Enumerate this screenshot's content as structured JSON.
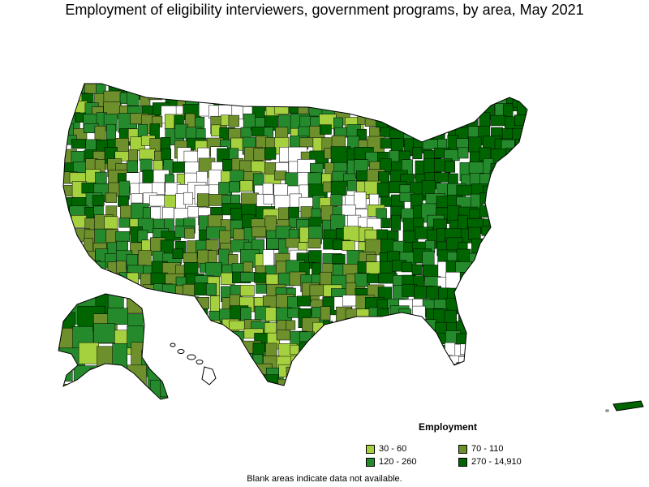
{
  "title": "Employment of eligibility interviewers, government programs, by area, May 2021",
  "legend": {
    "title": "Employment",
    "items": [
      {
        "label": "30 - 60",
        "color": "#a6d13f"
      },
      {
        "label": "70 - 110",
        "color": "#6d8f2c"
      },
      {
        "label": "120 - 260",
        "color": "#248a2b"
      },
      {
        "label": "270 - 14,910",
        "color": "#006400"
      }
    ]
  },
  "no_data_color": "#ffffff",
  "footnote": "Blank areas indicate data not available."
}
